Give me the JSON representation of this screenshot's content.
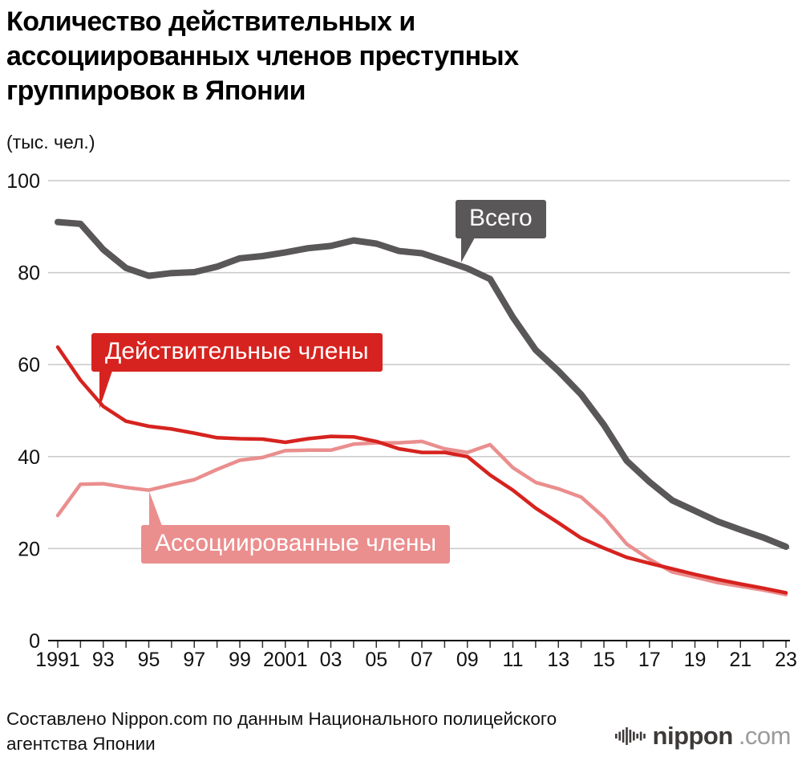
{
  "title": {
    "line1": "Количество действительных и",
    "line2": "ассоциированных членов преступных",
    "line3": "группировок в Японии"
  },
  "unit_label": "(тыс. чел.)",
  "chart_data": {
    "type": "line",
    "title": "Количество действительных и ассоциированных членов преступных группировок в Японии",
    "ylabel": "(тыс. чел.)",
    "ylim": [
      0,
      100
    ],
    "y_ticks": [
      0,
      20,
      40,
      60,
      80,
      100
    ],
    "grid": "horizontal",
    "legend_position": "callouts-on-lines",
    "x": [
      1991,
      1992,
      1993,
      1994,
      1995,
      1996,
      1997,
      1998,
      1999,
      2000,
      2001,
      2002,
      2003,
      2004,
      2005,
      2006,
      2007,
      2008,
      2009,
      2010,
      2011,
      2012,
      2013,
      2014,
      2015,
      2016,
      2017,
      2018,
      2019,
      2020,
      2021,
      2022,
      2023
    ],
    "x_tick_labels": [
      "1991",
      "93",
      "95",
      "97",
      "99",
      "2001",
      "03",
      "05",
      "07",
      "09",
      "11",
      "13",
      "15",
      "17",
      "19",
      "21",
      "23"
    ],
    "series": [
      {
        "name": "Всего",
        "color": "#595757",
        "line_width": 8,
        "values": [
          91.0,
          90.6,
          85.0,
          81.0,
          79.3,
          79.9,
          80.1,
          81.3,
          83.1,
          83.6,
          84.4,
          85.3,
          85.8,
          87.0,
          86.3,
          84.7,
          84.2,
          82.6,
          80.9,
          78.6,
          70.3,
          63.2,
          58.6,
          53.5,
          46.9,
          39.1,
          34.5,
          30.5,
          28.2,
          25.9,
          24.1,
          22.4,
          20.4
        ]
      },
      {
        "name": "Действительные члены",
        "color": "#d6231f",
        "line_width": 4.5,
        "values": [
          63.8,
          56.6,
          50.9,
          47.7,
          46.6,
          46.0,
          45.1,
          44.1,
          43.9,
          43.8,
          43.1,
          43.9,
          44.4,
          44.3,
          43.3,
          41.7,
          40.9,
          40.9,
          40.0,
          36.0,
          32.7,
          28.8,
          25.6,
          22.3,
          20.1,
          18.1,
          16.8,
          15.6,
          14.4,
          13.3,
          12.3,
          11.4,
          10.4
        ]
      },
      {
        "name": "Ассоциированные члены",
        "color": "#ea8e8e",
        "line_width": 4.5,
        "values": [
          27.2,
          34.0,
          34.1,
          33.3,
          32.7,
          33.9,
          35.0,
          37.2,
          39.2,
          39.8,
          41.3,
          41.4,
          41.4,
          42.7,
          43.0,
          43.0,
          43.3,
          41.7,
          40.9,
          42.6,
          37.6,
          34.4,
          33.0,
          31.2,
          26.8,
          21.0,
          17.7,
          14.9,
          13.8,
          12.6,
          11.8,
          11.0,
          10.0
        ]
      }
    ]
  },
  "footer": {
    "source_line1": "Составлено Nippon.com по данным Национального полицейского",
    "source_line2": "агентства Японии",
    "logo_name": "nippon",
    "logo_tld": ".com"
  }
}
